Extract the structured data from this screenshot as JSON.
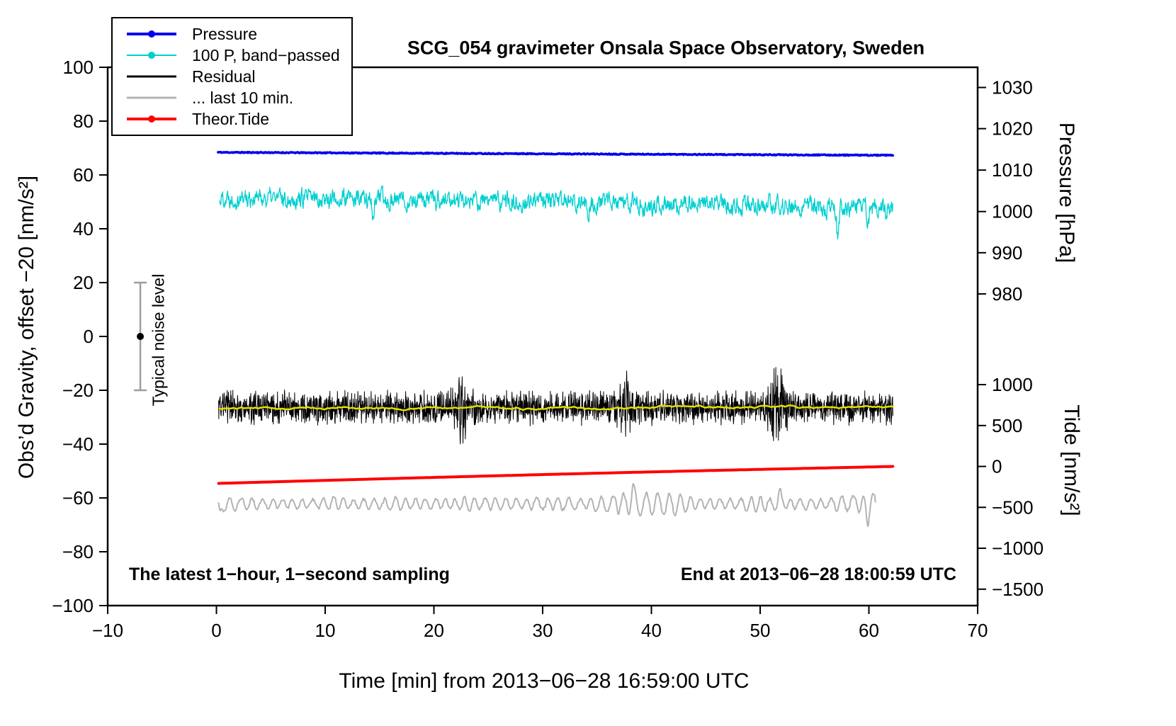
{
  "page": {
    "background": "#ffffff"
  },
  "chart_data": {
    "type": "line",
    "title": "SCG_054 gravimeter Onsala Space Observatory, Sweden",
    "xlabel": "Time [min] from 2013−06−28 16:59:00 UTC",
    "ylabel_left": "Obs’d Gravity, offset −20 [nm/s²]",
    "ylabel_right_top": "Pressure [hPa]",
    "ylabel_right_bottom": "Tide [nm/s²]",
    "xlim": [
      -10,
      70
    ],
    "ylim_left": [
      -100,
      100
    ],
    "xticks": [
      -10,
      0,
      10,
      20,
      30,
      40,
      50,
      60,
      70
    ],
    "yticks_left": [
      100,
      80,
      60,
      40,
      20,
      0,
      -20,
      -40,
      -60,
      -80,
      -100
    ],
    "right_axis_pressure": {
      "ticks": [
        {
          "label": "1030",
          "at": 92.5
        },
        {
          "label": "1020",
          "at": 77.2
        },
        {
          "label": "1010",
          "at": 61.8
        },
        {
          "label": "1000",
          "at": 46.4
        },
        {
          "label": "990",
          "at": 31.1
        },
        {
          "label": "980",
          "at": 15.8
        }
      ]
    },
    "right_axis_tide": {
      "ticks": [
        {
          "label": "1000",
          "at": -17.9
        },
        {
          "label": "500",
          "at": -33.1
        },
        {
          "label": "0",
          "at": -48.3
        },
        {
          "label": "−500",
          "at": -63.5
        },
        {
          "label": "−1000",
          "at": -78.7
        },
        {
          "label": "−1500",
          "at": -93.9
        }
      ]
    },
    "annotations": {
      "bottom_left": "The latest 1−hour, 1−second sampling",
      "bottom_right": "End at 2013−06−28 18:00:59 UTC",
      "noise_label": "Typical noise level"
    },
    "noise_bar": {
      "x": -7,
      "center": 0,
      "half_range": 20,
      "bar_color": "#9e9e9e",
      "dot_color": "#000000"
    },
    "legend": [
      {
        "label": "Pressure",
        "color": "#0000ee",
        "marker": true,
        "line_width": 4
      },
      {
        "label": "100 P, band−passed",
        "color": "#00cfcf",
        "marker": true,
        "line_width": 2
      },
      {
        "label": "Residual",
        "color": "#000000",
        "marker": false,
        "line_width": 3
      },
      {
        "label": "... last 10 min.",
        "color": "#b3b3b3",
        "marker": false,
        "line_width": 3
      },
      {
        "label": "Theor.Tide",
        "color": "#ff0000",
        "marker": true,
        "line_width": 4
      }
    ],
    "series": [
      {
        "name": "band_passed_pressure",
        "kind": "ar",
        "seed": 22,
        "n": 1600,
        "x0": 0.3,
        "x1": 62.2,
        "start": 51.8,
        "end": 47.8,
        "rho": 0.55,
        "sigma": 5.5,
        "clamp": 8.5,
        "color": "#00cfcf",
        "width": 1.3,
        "spikes": [
          {
            "x": 57.15,
            "amp": -13,
            "w": 0.1
          },
          {
            "x": 59.9,
            "amp": -7,
            "w": 0.09
          },
          {
            "x": 61.6,
            "amp": -6,
            "w": 0.09
          },
          {
            "x": 14.4,
            "amp": -6,
            "w": 0.08
          },
          {
            "x": 34.2,
            "amp": -5,
            "w": 0.08
          }
        ]
      },
      {
        "name": "pressure",
        "kind": "trend_noise",
        "seed": 11,
        "n": 900,
        "x0": 0.15,
        "x1": 62.2,
        "start": 68.4,
        "end": 67.3,
        "noise": 0.18,
        "color": "#0000ee",
        "width": 3.5
      },
      {
        "name": "residual",
        "kind": "spiky",
        "seed": 33,
        "n": 2600,
        "x0": 0.2,
        "x1": 62.2,
        "base": -26.4,
        "amp": 4.6,
        "color": "#000000",
        "width": 1,
        "bursts": [
          {
            "x": 51.6,
            "scale": 1.9,
            "w": 0.5
          },
          {
            "x": 37.6,
            "scale": 1.3,
            "w": 0.4
          },
          {
            "x": 22.5,
            "scale": 1.2,
            "w": 0.4
          }
        ]
      },
      {
        "name": "residual_smoothed",
        "kind": "slow",
        "seed": 44,
        "n": 400,
        "x0": 0.3,
        "x1": 62.2,
        "base": -26.6,
        "rho": 0.96,
        "sigma": 0.55,
        "clamp": 1.3,
        "color": "#e0e000",
        "width": 2.5
      },
      {
        "name": "theor_tide",
        "kind": "curve",
        "seed": 55,
        "n": 160,
        "x0": 0.2,
        "x1": 62.2,
        "start": -54.6,
        "end": -48.3,
        "bow": 0.25,
        "color": "#ff0000",
        "width": 4
      },
      {
        "name": "residual_last_10min",
        "kind": "osc",
        "seed": 66,
        "n": 950,
        "x0": 0.2,
        "x1": 60.6,
        "base": -62.2,
        "period": 0.95,
        "amp_min": 1.6,
        "amp_max": 4.6,
        "jitter": 0.9,
        "color": "#b3b3b3",
        "width": 2,
        "spikes": [
          {
            "x": 0.35,
            "amp": -5.5,
            "w": 0.12
          },
          {
            "x": 59.9,
            "amp": -5,
            "w": 0.12
          },
          {
            "x": 38.3,
            "amp": 3.5,
            "w": 0.15
          },
          {
            "x": 51.8,
            "amp": 4,
            "w": 0.12
          }
        ]
      }
    ]
  }
}
